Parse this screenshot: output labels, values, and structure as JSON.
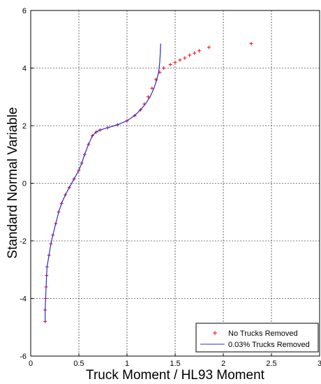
{
  "chart_data": {
    "type": "scatter",
    "title": "",
    "xlabel": "Truck Moment / HL93 Moment",
    "ylabel": "Standard Normal Variable",
    "xlim": [
      0,
      3
    ],
    "ylim": [
      -6,
      6
    ],
    "xticks": [
      "0",
      "0.5",
      "1",
      "1.5",
      "2",
      "2.5",
      "3"
    ],
    "yticks": [
      "6",
      "4",
      "2",
      "0",
      "-2",
      "-4",
      "-6"
    ],
    "grid": true,
    "legend_position": "bottom-right",
    "series": [
      {
        "name": "No Trucks Removed",
        "style": "markers",
        "marker": "+",
        "color": "#ff0000",
        "points": [
          [
            0.15,
            -4.8
          ],
          [
            0.15,
            -4.4
          ],
          [
            0.155,
            -4.0
          ],
          [
            0.16,
            -3.6
          ],
          [
            0.165,
            -3.2
          ],
          [
            0.17,
            -2.9
          ],
          [
            0.19,
            -2.5
          ],
          [
            0.21,
            -2.1
          ],
          [
            0.23,
            -1.8
          ],
          [
            0.26,
            -1.4
          ],
          [
            0.29,
            -1.0
          ],
          [
            0.32,
            -0.7
          ],
          [
            0.36,
            -0.4
          ],
          [
            0.4,
            -0.15
          ],
          [
            0.45,
            0.15
          ],
          [
            0.5,
            0.45
          ],
          [
            0.53,
            0.7
          ],
          [
            0.56,
            1.0
          ],
          [
            0.6,
            1.35
          ],
          [
            0.64,
            1.65
          ],
          [
            0.68,
            1.78
          ],
          [
            0.72,
            1.85
          ],
          [
            0.8,
            1.93
          ],
          [
            0.9,
            2.03
          ],
          [
            1.0,
            2.17
          ],
          [
            1.08,
            2.35
          ],
          [
            1.14,
            2.55
          ],
          [
            1.18,
            2.75
          ],
          [
            1.22,
            3.0
          ],
          [
            1.26,
            3.3
          ],
          [
            1.3,
            3.6
          ],
          [
            1.34,
            3.85
          ],
          [
            1.38,
            4.0
          ],
          [
            1.45,
            4.12
          ],
          [
            1.5,
            4.2
          ],
          [
            1.55,
            4.28
          ],
          [
            1.6,
            4.35
          ],
          [
            1.65,
            4.45
          ],
          [
            1.7,
            4.52
          ],
          [
            1.75,
            4.6
          ],
          [
            1.85,
            4.72
          ],
          [
            2.29,
            4.85
          ]
        ]
      },
      {
        "name": "0.03% Trucks Removed",
        "style": "line",
        "color": "#2b2bd6",
        "points": [
          [
            0.15,
            -4.8
          ],
          [
            0.15,
            -4.4
          ],
          [
            0.155,
            -4.0
          ],
          [
            0.16,
            -3.6
          ],
          [
            0.165,
            -3.2
          ],
          [
            0.17,
            -2.9
          ],
          [
            0.19,
            -2.5
          ],
          [
            0.21,
            -2.1
          ],
          [
            0.23,
            -1.8
          ],
          [
            0.26,
            -1.4
          ],
          [
            0.29,
            -1.0
          ],
          [
            0.32,
            -0.7
          ],
          [
            0.36,
            -0.4
          ],
          [
            0.4,
            -0.15
          ],
          [
            0.45,
            0.15
          ],
          [
            0.5,
            0.45
          ],
          [
            0.53,
            0.7
          ],
          [
            0.56,
            1.0
          ],
          [
            0.6,
            1.35
          ],
          [
            0.64,
            1.65
          ],
          [
            0.68,
            1.78
          ],
          [
            0.72,
            1.85
          ],
          [
            0.8,
            1.93
          ],
          [
            0.9,
            2.03
          ],
          [
            1.0,
            2.17
          ],
          [
            1.08,
            2.35
          ],
          [
            1.14,
            2.55
          ],
          [
            1.19,
            2.75
          ],
          [
            1.24,
            3.0
          ],
          [
            1.28,
            3.3
          ],
          [
            1.31,
            3.6
          ],
          [
            1.33,
            3.9
          ],
          [
            1.34,
            4.2
          ],
          [
            1.345,
            4.5
          ],
          [
            1.35,
            4.85
          ]
        ]
      }
    ]
  }
}
